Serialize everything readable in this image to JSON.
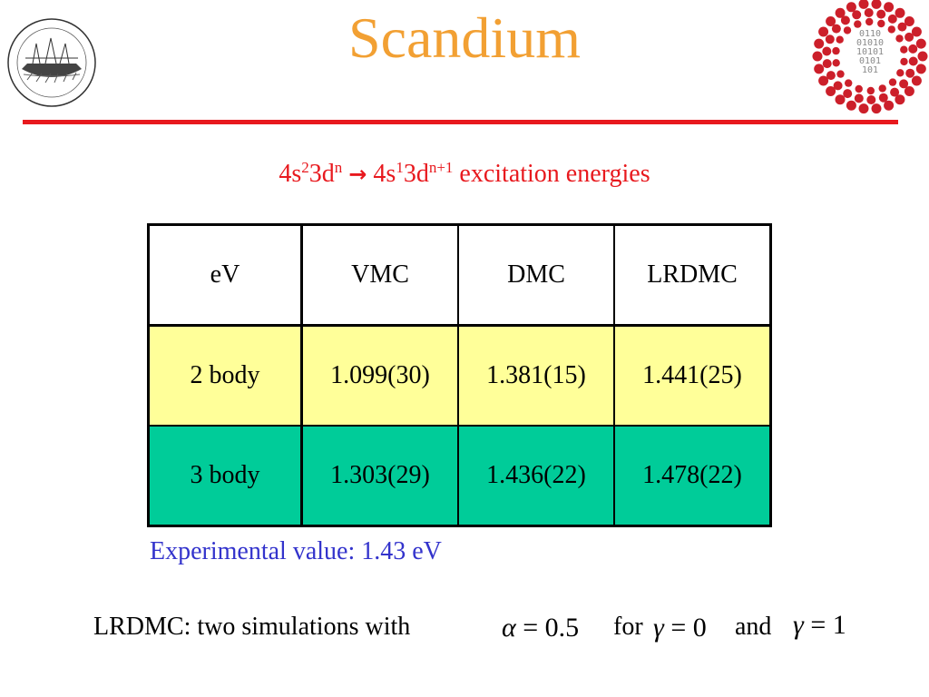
{
  "slide": {
    "title": "Scandium",
    "subtitle": {
      "p1_base": "4s",
      "p1_sup1": "2",
      "p1_mid": "3d",
      "p1_sup2": "n",
      "arrow": "→",
      "p2_base": "4s",
      "p2_sup1": "1",
      "p2_mid": "3d",
      "p2_sup2": "n+1",
      "tail": " excitation energies"
    },
    "table": {
      "headers": [
        "eV",
        "VMC",
        "DMC",
        "LRDMC"
      ],
      "rows": [
        [
          "2 body",
          "1.099(30)",
          "1.381(15)",
          "1.441(25)"
        ],
        [
          "3 body",
          "1.303(29)",
          "1.436(22)",
          "1.478(22)"
        ]
      ]
    },
    "experimental": "Experimental value: 1.43 eV",
    "note": {
      "prefix": "LRDMC: two simulations with",
      "eq1_symbol": "α",
      "eq1_op": "=",
      "eq1_value": "0.5",
      "for_text": "for",
      "eq2_symbol": "γ",
      "eq2_op": "=",
      "eq2_value": "0",
      "and_text": "and",
      "eq3_symbol": "γ",
      "eq3_op": "=",
      "eq3_value": "1"
    }
  },
  "colors": {
    "title": "#f2a033",
    "rule": "#e8191e",
    "subtitle": "#e8191e",
    "row_2body": "#ffff99",
    "row_3body": "#00cc99",
    "experimental": "#3333cc",
    "logo_dots": "#cc1f2a"
  },
  "icons": {
    "left_logo": "sissa-ship-seal-icon",
    "right_logo": "binary-dots-logo-icon"
  }
}
